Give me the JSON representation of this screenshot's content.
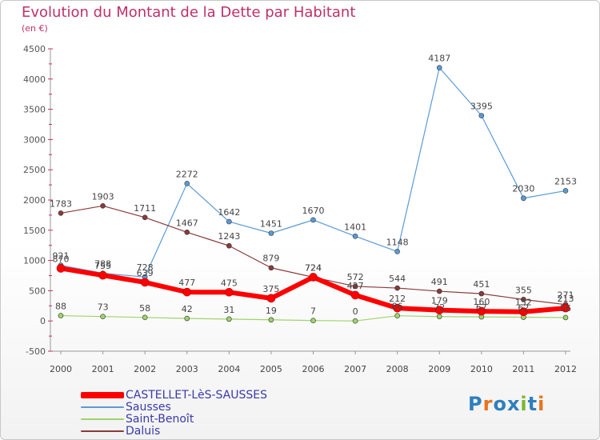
{
  "title": "Evolution du Montant de la Dette par Habitant",
  "subtitle": "(en €)",
  "logo": {
    "text": "Proxiti",
    "colors": [
      "#2f7fbf",
      "#e8731c",
      "#2f7fbf",
      "#2f7fbf",
      "#7ab82a",
      "#2f7fbf",
      "#e8731c"
    ]
  },
  "chart_data": {
    "type": "line",
    "x": [
      "2000",
      "2001",
      "2002",
      "2003",
      "2004",
      "2005",
      "2006",
      "2007",
      "2008",
      "2009",
      "2010",
      "2011",
      "2012"
    ],
    "ylim": [
      -500,
      4500
    ],
    "yticks": [
      -500,
      0,
      500,
      1000,
      1500,
      2000,
      2500,
      3000,
      3500,
      4000,
      4500
    ],
    "grid": false,
    "legend_position": "bottom-left",
    "series": [
      {
        "name": "CASTELLET-LèS-SAUSSES",
        "color": "#ff0000",
        "values": [
          870,
          755,
          639,
          477,
          475,
          375,
          724,
          427,
          212,
          179,
          160,
          152,
          213
        ]
      },
      {
        "name": "Sausses",
        "color": "#5b9bd5",
        "values": [
          921,
          788,
          728,
          2272,
          1642,
          1451,
          1670,
          1401,
          1148,
          4187,
          3395,
          2030,
          2153
        ]
      },
      {
        "name": "Saint-Benoît",
        "color": "#9ed46a",
        "values": [
          88,
          73,
          58,
          42,
          31,
          19,
          7,
          0,
          86,
          72,
          67,
          62,
          56
        ]
      },
      {
        "name": "Daluis",
        "color": "#8b3a3a",
        "values": [
          1783,
          1903,
          1711,
          1467,
          1243,
          879,
          724,
          572,
          544,
          491,
          451,
          355,
          271
        ]
      }
    ]
  }
}
